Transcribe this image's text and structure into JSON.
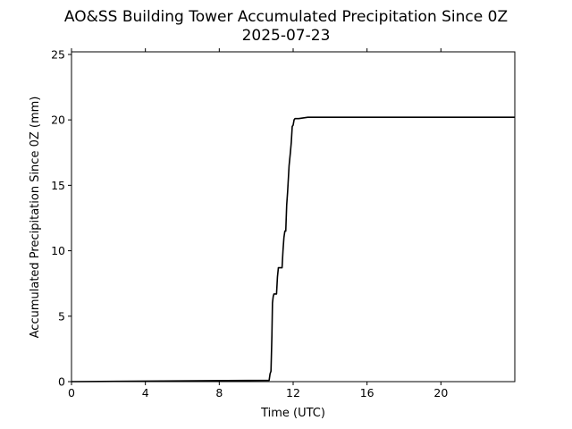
{
  "chart_data": {
    "type": "line",
    "title": "AO&SS Building Tower Accumulated Precipitation Since 0Z",
    "subtitle": "2025-07-23",
    "xlabel": "Time (UTC)",
    "ylabel": "Accumulated Precipitation Since 0Z (mm)",
    "xlim": [
      0,
      24
    ],
    "ylim": [
      0,
      25.2
    ],
    "xticks": [
      0,
      4,
      8,
      12,
      16,
      20
    ],
    "xtick_labels": [
      "0",
      "4",
      "8",
      "12",
      "16",
      "20"
    ],
    "yticks": [
      0,
      5,
      10,
      15,
      20,
      25
    ],
    "ytick_labels": [
      "0",
      "5",
      "10",
      "15",
      "20",
      "25"
    ],
    "grid": false,
    "line_color": "#000000",
    "series": [
      {
        "x": [
          0,
          10.7,
          10.75,
          10.8,
          10.85,
          10.88,
          10.92,
          10.96,
          11.1,
          11.15,
          11.2,
          11.4,
          11.45,
          11.5,
          11.55,
          11.6,
          11.65,
          11.7,
          11.78,
          11.85,
          11.9,
          11.95,
          12.0,
          12.05,
          12.1,
          12.2,
          12.3,
          12.8,
          24
        ],
        "y": [
          0,
          0.1,
          0.6,
          0.8,
          3.5,
          6.0,
          6.5,
          6.7,
          6.7,
          8.0,
          8.7,
          8.7,
          10.0,
          11.0,
          11.5,
          11.5,
          13.5,
          14.5,
          16.5,
          17.5,
          18.3,
          19.5,
          19.6,
          20.0,
          20.1,
          20.1,
          20.1,
          20.2,
          20.2
        ]
      }
    ]
  }
}
